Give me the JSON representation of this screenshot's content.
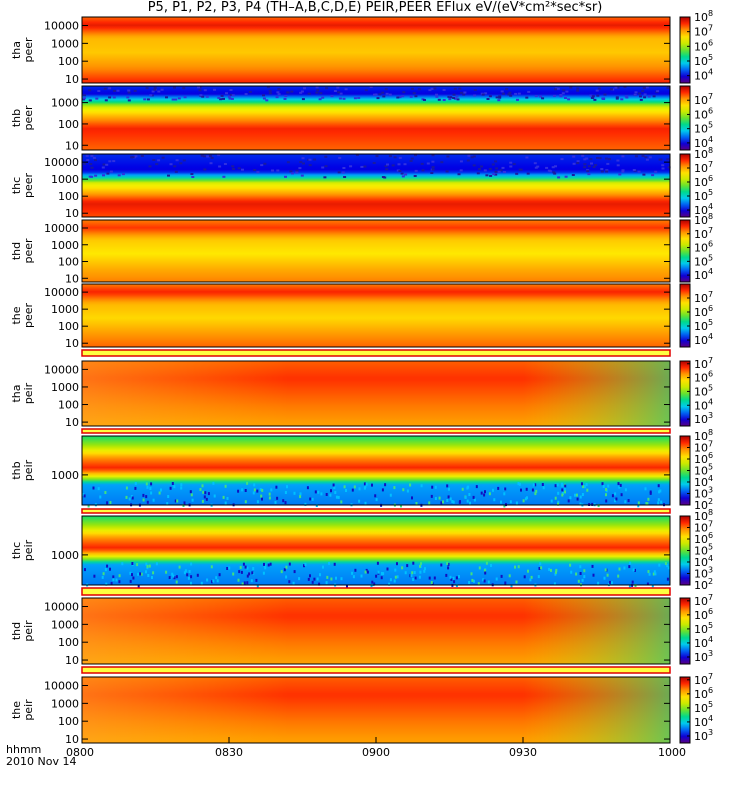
{
  "title": "P5, P1, P2, P3, P4 (TH–A,B,C,D,E) PEIR,PEER EFlux eV/(eV*cm²*sec*sr)",
  "time_axis": {
    "label": "hhmm",
    "date": "2010 Nov 14",
    "ticks": [
      "0800",
      "0830",
      "0900",
      "0930",
      "1000"
    ]
  },
  "chart_data": [
    {
      "type": "heatmap",
      "probe": "tha",
      "species": "peer",
      "ylabel": [
        "tha",
        "peer"
      ],
      "yscale": "log",
      "yticks": [
        10,
        100,
        1000,
        10000
      ],
      "ytick_labels": [
        "10",
        "100",
        "1000",
        "10000"
      ],
      "ylim": [
        6,
        30000
      ],
      "cbar_exponents": [
        4,
        5,
        6,
        7,
        8
      ],
      "cbar_range": [
        3.5,
        8
      ],
      "flux_profile": [
        [
          6,
          7.6
        ],
        [
          30,
          7.2
        ],
        [
          300,
          6.8
        ],
        [
          2000,
          6.9
        ],
        [
          10000,
          7.7
        ],
        [
          30000,
          7.3
        ]
      ],
      "feature": "smooth"
    },
    {
      "type": "heatmap",
      "probe": "thb",
      "species": "peer",
      "ylabel": [
        "thb",
        "peer"
      ],
      "yscale": "log",
      "yticks": [
        10,
        100,
        1000
      ],
      "ytick_labels": [
        "10",
        "100",
        "1000"
      ],
      "ylim": [
        6,
        6000
      ],
      "cbar_exponents": [
        4,
        5,
        6,
        7
      ],
      "cbar_range": [
        3.5,
        8
      ],
      "flux_profile": [
        [
          6,
          7.3
        ],
        [
          60,
          7.6
        ],
        [
          200,
          7.0
        ],
        [
          600,
          6.3
        ],
        [
          1500,
          4.8
        ],
        [
          2500,
          4.0
        ],
        [
          6000,
          4.2
        ]
      ],
      "feature": "noise_top"
    },
    {
      "type": "heatmap",
      "probe": "thc",
      "species": "peer",
      "ylabel": [
        "thc",
        "peer"
      ],
      "yscale": "log",
      "yticks": [
        10,
        100,
        1000,
        10000
      ],
      "ytick_labels": [
        "10",
        "100",
        "1000",
        "10000"
      ],
      "ylim": [
        6,
        30000
      ],
      "cbar_exponents": [
        4,
        5,
        6,
        7,
        8
      ],
      "cbar_range": [
        3.5,
        8
      ],
      "flux_profile": [
        [
          6,
          7.4
        ],
        [
          40,
          7.7
        ],
        [
          150,
          7.0
        ],
        [
          600,
          6.3
        ],
        [
          1500,
          4.8
        ],
        [
          3000,
          4.0
        ],
        [
          30000,
          4.2
        ]
      ],
      "feature": "noise_top"
    },
    {
      "type": "heatmap",
      "probe": "thd",
      "species": "peer",
      "ylabel": [
        "thd",
        "peer"
      ],
      "yscale": "log",
      "yticks": [
        10,
        100,
        1000,
        10000
      ],
      "ytick_labels": [
        "10",
        "100",
        "1000",
        "10000"
      ],
      "ylim": [
        6,
        30000
      ],
      "cbar_exponents": [
        4,
        5,
        6,
        7,
        8
      ],
      "cbar_range": [
        3.5,
        8
      ],
      "flux_profile": [
        [
          6,
          7.2
        ],
        [
          30,
          7.0
        ],
        [
          300,
          6.6
        ],
        [
          2000,
          6.8
        ],
        [
          10000,
          7.5
        ],
        [
          30000,
          7.2
        ]
      ],
      "feature": "smooth"
    },
    {
      "type": "heatmap",
      "probe": "the",
      "species": "peer",
      "ylabel": [
        "the",
        "peer"
      ],
      "yscale": "log",
      "yticks": [
        10,
        100,
        1000,
        10000
      ],
      "ytick_labels": [
        "10",
        "100",
        "1000",
        "10000"
      ],
      "ylim": [
        6,
        30000
      ],
      "cbar_exponents": [
        4,
        5,
        6,
        7
      ],
      "cbar_range": [
        3.5,
        8
      ],
      "flux_profile": [
        [
          6,
          7.3
        ],
        [
          30,
          7.1
        ],
        [
          300,
          6.7
        ],
        [
          2000,
          6.9
        ],
        [
          10000,
          7.6
        ],
        [
          30000,
          7.2
        ]
      ],
      "feature": "smooth"
    },
    {
      "type": "heatmap",
      "probe": "tha",
      "species": "peir",
      "ylabel": [
        "tha",
        "peir"
      ],
      "yscale": "log",
      "yticks": [
        10,
        100,
        1000,
        10000
      ],
      "ytick_labels": [
        "10",
        "100",
        "1000",
        "10000"
      ],
      "ylim": [
        6,
        30000
      ],
      "cbar_exponents": [
        3,
        4,
        5,
        6,
        7
      ],
      "cbar_range": [
        2.5,
        7.2
      ],
      "flux_profile": [
        [
          6,
          6.2
        ],
        [
          100,
          6.4
        ],
        [
          3000,
          6.7
        ],
        [
          30000,
          6.5
        ]
      ],
      "feature": "ion_gradient"
    },
    {
      "type": "heatmap",
      "probe": "thb",
      "species": "peir",
      "ylabel": [
        "thb",
        "peir"
      ],
      "yscale": "log",
      "yticks": [
        1000
      ],
      "ytick_labels": [
        "1000"
      ],
      "ylim": [
        200,
        8000
      ],
      "cbar_exponents": [
        2,
        3,
        4,
        5,
        6,
        7,
        8
      ],
      "cbar_range": [
        2,
        8
      ],
      "flux_profile": [
        [
          200,
          3.3
        ],
        [
          600,
          3.5
        ],
        [
          900,
          5.8
        ],
        [
          1400,
          7.5
        ],
        [
          2500,
          6.8
        ],
        [
          5000,
          5.2
        ],
        [
          8000,
          4.6
        ]
      ],
      "feature": "noise_bottom"
    },
    {
      "type": "heatmap",
      "probe": "thc",
      "species": "peir",
      "ylabel": [
        "thc",
        "peir"
      ],
      "yscale": "log",
      "yticks": [
        1000
      ],
      "ytick_labels": [
        "1000"
      ],
      "ylim": [
        200,
        8000
      ],
      "cbar_exponents": [
        2,
        3,
        4,
        5,
        6,
        7,
        8
      ],
      "cbar_range": [
        2,
        8
      ],
      "flux_profile": [
        [
          200,
          3.3
        ],
        [
          600,
          3.5
        ],
        [
          900,
          5.8
        ],
        [
          1400,
          7.5
        ],
        [
          2500,
          6.8
        ],
        [
          5000,
          5.2
        ],
        [
          8000,
          4.6
        ]
      ],
      "feature": "noise_bottom"
    },
    {
      "type": "heatmap",
      "probe": "thd",
      "species": "peir",
      "ylabel": [
        "thd",
        "peir"
      ],
      "yscale": "log",
      "yticks": [
        10,
        100,
        1000,
        10000
      ],
      "ytick_labels": [
        "10",
        "100",
        "1000",
        "10000"
      ],
      "ylim": [
        6,
        30000
      ],
      "cbar_exponents": [
        3,
        4,
        5,
        6,
        7
      ],
      "cbar_range": [
        2.5,
        7.2
      ],
      "flux_profile": [
        [
          6,
          6.2
        ],
        [
          100,
          6.4
        ],
        [
          3000,
          6.7
        ],
        [
          30000,
          6.5
        ]
      ],
      "feature": "ion_gradient"
    },
    {
      "type": "heatmap",
      "probe": "the",
      "species": "peir",
      "ylabel": [
        "the",
        "peir"
      ],
      "yscale": "log",
      "yticks": [
        10,
        100,
        1000,
        10000
      ],
      "ytick_labels": [
        "10",
        "100",
        "1000",
        "10000"
      ],
      "ylim": [
        6,
        30000
      ],
      "cbar_exponents": [
        3,
        4,
        5,
        6,
        7
      ],
      "cbar_range": [
        2.5,
        7.2
      ],
      "flux_profile": [
        [
          6,
          6.2
        ],
        [
          100,
          6.4
        ],
        [
          3000,
          6.7
        ],
        [
          30000,
          6.5
        ]
      ],
      "feature": "ion_gradient"
    }
  ]
}
